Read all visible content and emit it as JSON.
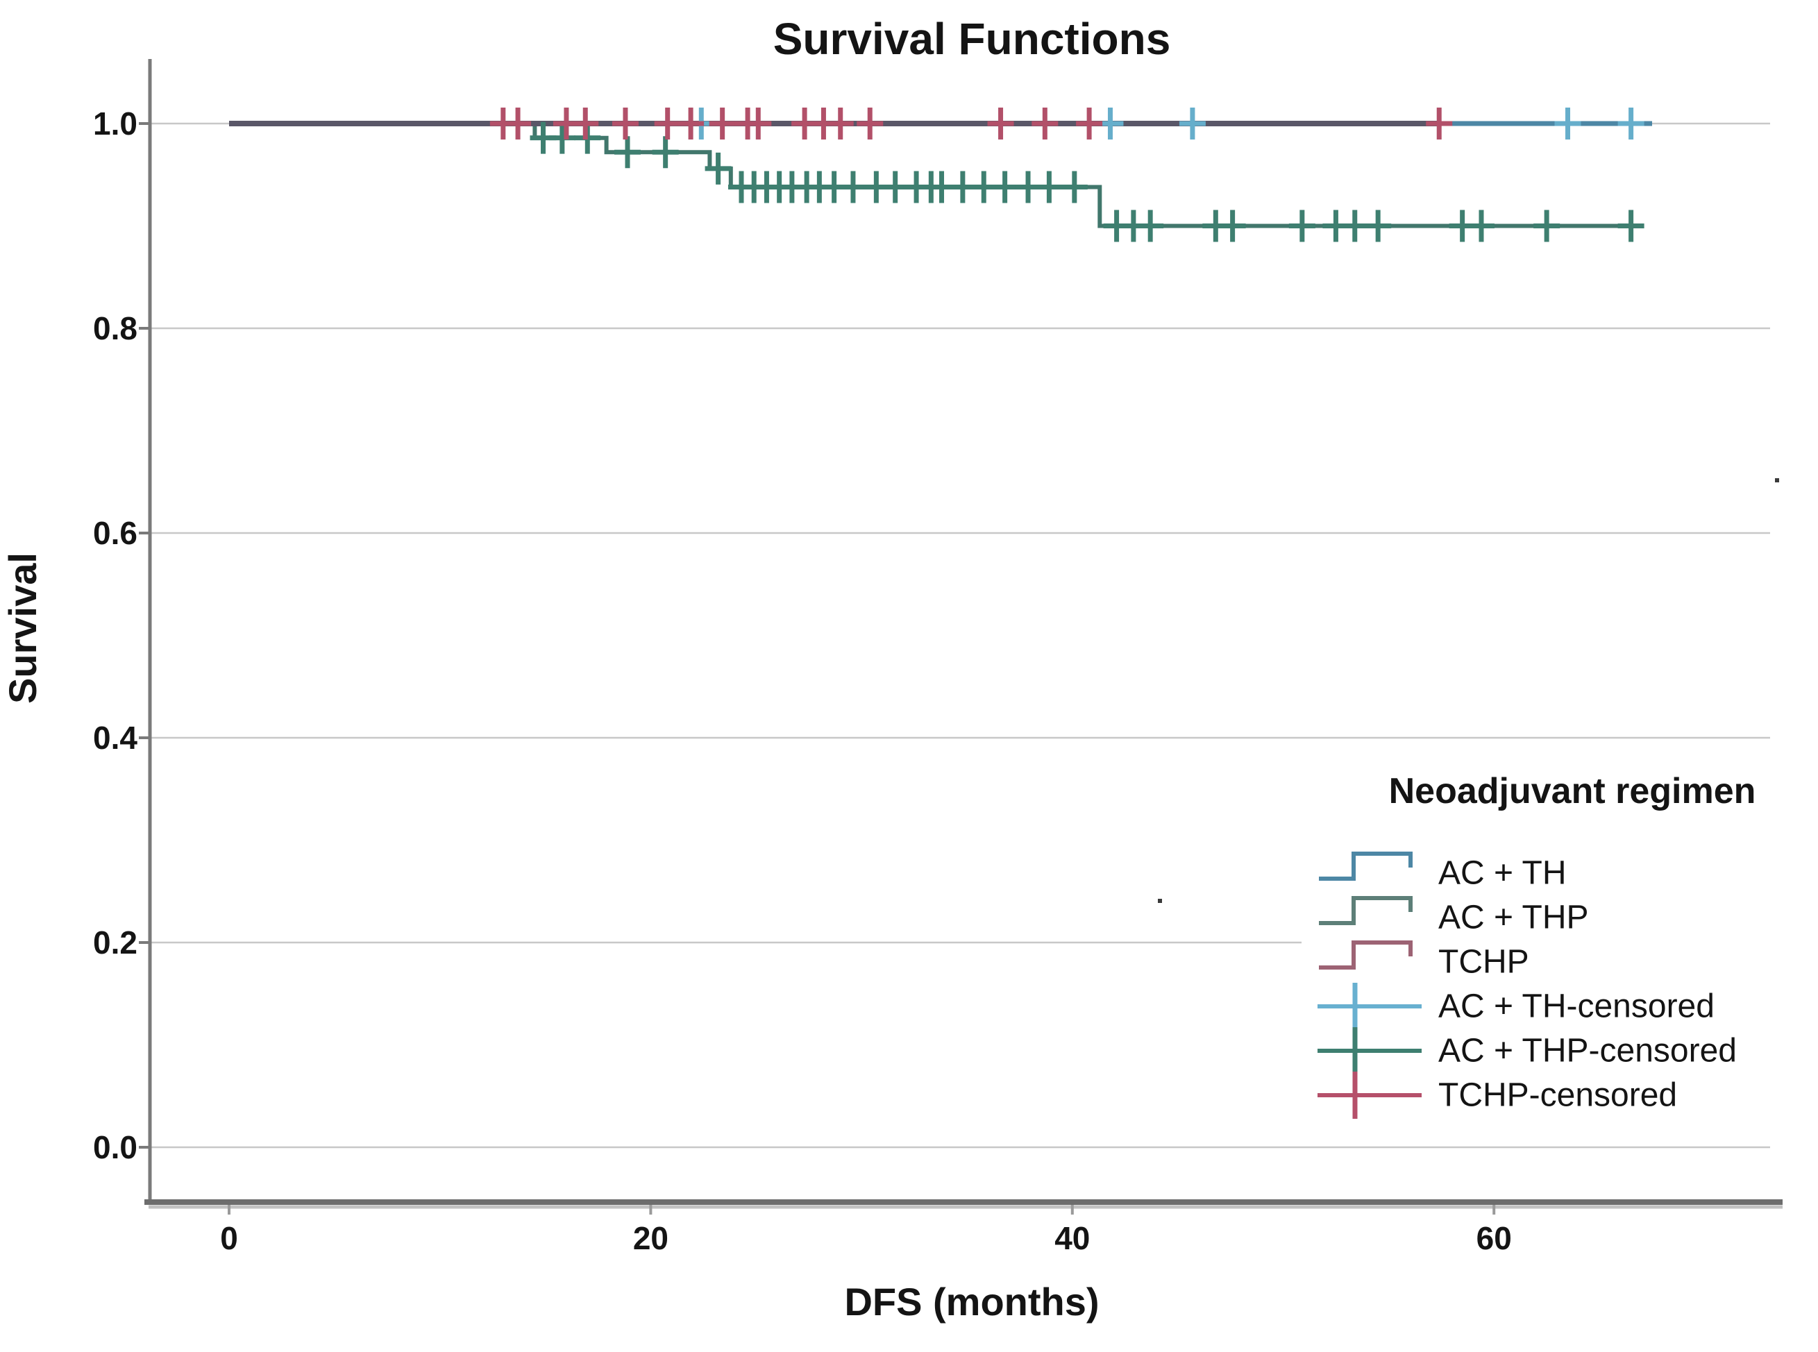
{
  "chart_data": {
    "type": "line",
    "subtype": "kaplan-meier-step",
    "title": "Survival Functions",
    "xlabel": "DFS (months)",
    "ylabel": "Survival",
    "xlim": [
      0,
      73
    ],
    "ylim": [
      0.0,
      1.0
    ],
    "grid": "horizontal-only",
    "x_ticks": [
      {
        "label": "0",
        "value": 0
      },
      {
        "label": "20",
        "value": 20
      },
      {
        "label": "40",
        "value": 40
      },
      {
        "label": "60",
        "value": 60
      }
    ],
    "y_ticks": [
      {
        "label": "1.0",
        "value": 1.0
      },
      {
        "label": "0.8",
        "value": 0.8
      },
      {
        "label": "0.6",
        "value": 0.6
      },
      {
        "label": "0.4",
        "value": 0.4
      },
      {
        "label": "0.2",
        "value": 0.2
      },
      {
        "label": "0.0",
        "value": 0.0
      }
    ],
    "legend_position": "lower-right-inside",
    "series": [
      {
        "name": "AC + TH",
        "color": "#4d87a5",
        "censor_color": "#66aecb",
        "steps": [
          [
            0,
            1.0
          ],
          [
            67.5,
            1.0
          ]
        ],
        "censored": [
          [
            22.4,
            1.0
          ],
          [
            41.8,
            1.0
          ],
          [
            45.7,
            1.0
          ],
          [
            63.5,
            1.0
          ],
          [
            66.5,
            1.0
          ]
        ]
      },
      {
        "name": "AC + THP",
        "color": "#41776c",
        "censor_color": "#3e7f70",
        "steps": [
          [
            0,
            1.0
          ],
          [
            14.5,
            1.0
          ],
          [
            14.5,
            0.986
          ],
          [
            17.9,
            0.986
          ],
          [
            17.9,
            0.972
          ],
          [
            22.8,
            0.972
          ],
          [
            22.8,
            0.956
          ],
          [
            23.8,
            0.956
          ],
          [
            23.8,
            0.938
          ],
          [
            41.3,
            0.938
          ],
          [
            41.3,
            0.9
          ],
          [
            66.8,
            0.9
          ]
        ],
        "censored": [
          [
            14.9,
            0.986
          ],
          [
            15.8,
            0.986
          ],
          [
            17.0,
            0.986
          ],
          [
            18.9,
            0.972
          ],
          [
            20.7,
            0.972
          ],
          [
            23.2,
            0.956
          ],
          [
            24.3,
            0.938
          ],
          [
            24.9,
            0.938
          ],
          [
            25.5,
            0.938
          ],
          [
            26.1,
            0.938
          ],
          [
            26.7,
            0.938
          ],
          [
            27.4,
            0.938
          ],
          [
            28.0,
            0.938
          ],
          [
            28.7,
            0.938
          ],
          [
            29.6,
            0.938
          ],
          [
            30.7,
            0.938
          ],
          [
            31.6,
            0.938
          ],
          [
            32.6,
            0.938
          ],
          [
            33.3,
            0.938
          ],
          [
            33.8,
            0.938
          ],
          [
            34.8,
            0.938
          ],
          [
            35.8,
            0.938
          ],
          [
            36.8,
            0.938
          ],
          [
            37.9,
            0.938
          ],
          [
            38.9,
            0.938
          ],
          [
            40.1,
            0.938
          ],
          [
            42.1,
            0.9
          ],
          [
            42.9,
            0.9
          ],
          [
            43.7,
            0.9
          ],
          [
            46.8,
            0.9
          ],
          [
            47.6,
            0.9
          ],
          [
            50.9,
            0.9
          ],
          [
            52.5,
            0.9
          ],
          [
            53.4,
            0.9
          ],
          [
            54.5,
            0.9
          ],
          [
            58.5,
            0.9
          ],
          [
            59.4,
            0.9
          ],
          [
            62.5,
            0.9
          ],
          [
            66.5,
            0.9
          ]
        ]
      },
      {
        "name": "TCHP",
        "color": "#9d5670",
        "censor_color": "#b25069",
        "steps": [
          [
            0,
            1.0
          ],
          [
            57.5,
            1.0
          ]
        ],
        "censored": [
          [
            13.0,
            1.0
          ],
          [
            13.7,
            1.0
          ],
          [
            16.0,
            1.0
          ],
          [
            16.9,
            1.0
          ],
          [
            18.8,
            1.0
          ],
          [
            20.8,
            1.0
          ],
          [
            21.9,
            1.0
          ],
          [
            23.4,
            1.0
          ],
          [
            24.6,
            1.0
          ],
          [
            25.1,
            1.0
          ],
          [
            27.3,
            1.0
          ],
          [
            28.2,
            1.0
          ],
          [
            29.0,
            1.0
          ],
          [
            30.4,
            1.0
          ],
          [
            36.6,
            1.0
          ],
          [
            38.7,
            1.0
          ],
          [
            40.8,
            1.0
          ],
          [
            57.4,
            1.0
          ]
        ]
      }
    ],
    "overlap_top_line": {
      "note": "AC + TH and TCHP overlap at survival 1.0 and render as one dark slate line",
      "color": "#5a5768",
      "from_month": 0,
      "to_month": 57.5,
      "level": 1.0
    }
  },
  "legend": {
    "title": "Neoadjuvant regimen",
    "items": [
      {
        "label": "AC + TH",
        "glyph": "step",
        "color": "#4d87a5"
      },
      {
        "label": "AC + THP",
        "glyph": "step",
        "color": "#5d7f78"
      },
      {
        "label": "TCHP",
        "glyph": "step",
        "color": "#9d6374"
      },
      {
        "label": "AC + TH-censored",
        "glyph": "plus",
        "color": "#68b0d0"
      },
      {
        "label": "AC + THP-censored",
        "glyph": "plus",
        "color": "#3e7f70"
      },
      {
        "label": "TCHP-censored",
        "glyph": "plus",
        "color": "#b5506a"
      }
    ]
  },
  "colors": {
    "grid": "#c8c8c8",
    "axis": "#6d6d6d",
    "axis_shadow": "#c2c2c2",
    "text": "#141414",
    "background": "#ffffff"
  },
  "artifacts": {
    "specks": [
      [
        1668,
        1295
      ],
      [
        2557,
        689
      ]
    ]
  }
}
